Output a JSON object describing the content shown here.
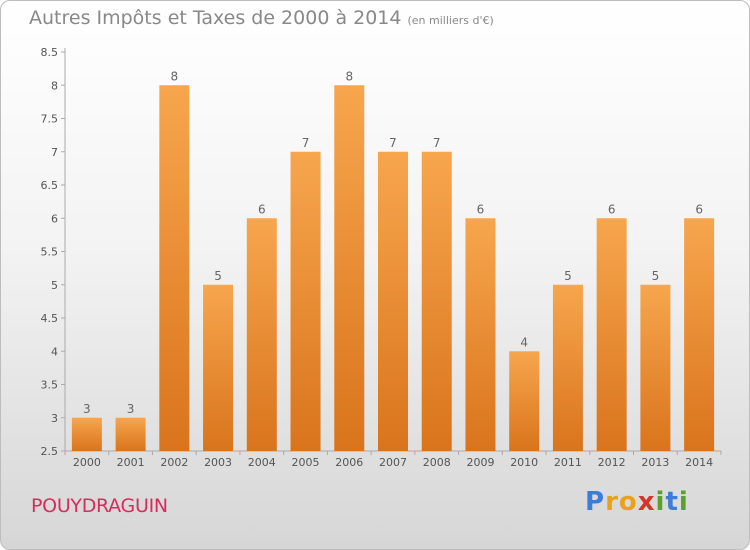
{
  "header": {
    "title": "Autres Impôts et Taxes de 2000 à 2014",
    "unit": "(en milliers d'€)"
  },
  "footer": {
    "commune": "POUYDRAGUIN",
    "logo": {
      "letters": [
        "P",
        "r",
        "o",
        "x",
        "i",
        "t",
        "i"
      ],
      "colors": [
        "#3b7dd8",
        "#e8a21a",
        "#e8a21a",
        "#d9342b",
        "#5aa02c",
        "#3b7dd8",
        "#5aa02c"
      ]
    }
  },
  "chart_data": {
    "type": "bar",
    "categories": [
      "2000",
      "2001",
      "2002",
      "2003",
      "2004",
      "2005",
      "2006",
      "2007",
      "2008",
      "2009",
      "2010",
      "2011",
      "2012",
      "2013",
      "2014"
    ],
    "values": [
      3,
      3,
      8,
      5,
      6,
      7,
      8,
      7,
      7,
      6,
      4,
      5,
      6,
      5,
      6
    ],
    "ylim": [
      2.5,
      8.5
    ],
    "yticks": [
      "2.5",
      "3",
      "3.5",
      "4",
      "4.5",
      "5",
      "5.5",
      "6",
      "6.5",
      "7",
      "7.5",
      "8",
      "8.5"
    ],
    "grid": false,
    "bar_color_top": "#f7a64e",
    "bar_color_bottom": "#d9741c"
  }
}
